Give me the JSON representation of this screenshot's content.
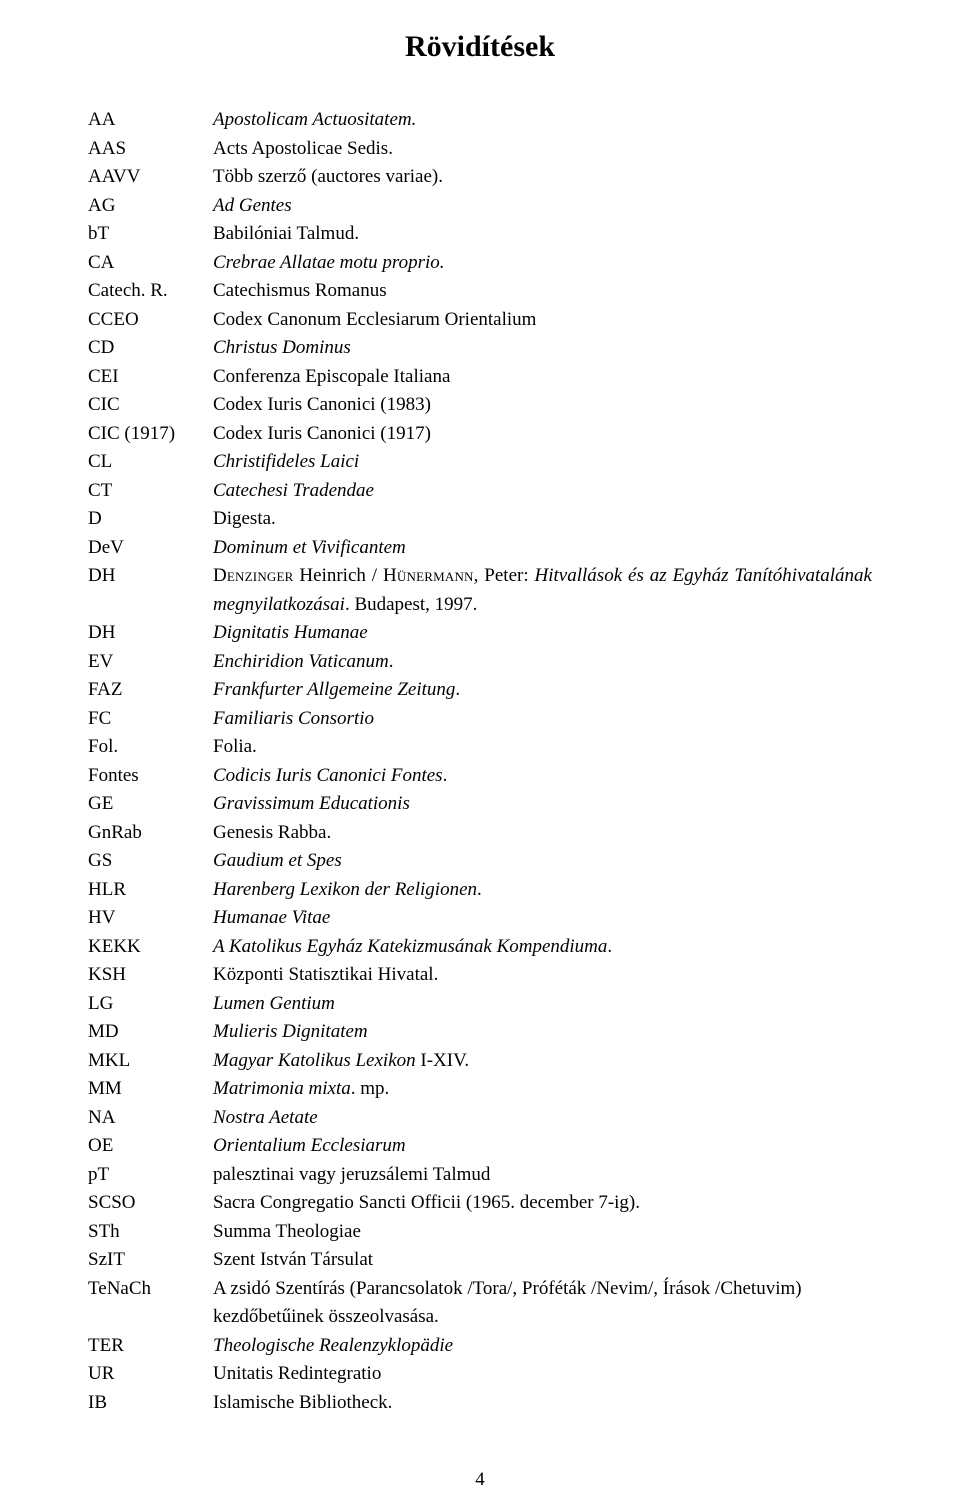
{
  "title": "Rövidítések",
  "page_number": "4",
  "entries": [
    {
      "abbr": "AA",
      "parts": [
        {
          "t": "Apostolicam Actuositatem.",
          "i": true
        }
      ]
    },
    {
      "abbr": "AAS",
      "parts": [
        {
          "t": "Acts Apostolicae Sedis."
        }
      ]
    },
    {
      "abbr": "AAVV",
      "parts": [
        {
          "t": "Több szerző (auctores variae)."
        }
      ]
    },
    {
      "abbr": "AG",
      "parts": [
        {
          "t": "Ad Gentes",
          "i": true
        }
      ]
    },
    {
      "abbr": "bT",
      "parts": [
        {
          "t": "Babilóniai Talmud."
        }
      ]
    },
    {
      "abbr": "CA",
      "parts": [
        {
          "t": "Crebrae Allatae motu proprio.",
          "i": true
        }
      ]
    },
    {
      "abbr": "Catech. R.",
      "parts": [
        {
          "t": "Catechismus Romanus"
        }
      ]
    },
    {
      "abbr": "CCEO",
      "parts": [
        {
          "t": "Codex Canonum Ecclesiarum Orientalium"
        }
      ]
    },
    {
      "abbr": "CD",
      "parts": [
        {
          "t": "Christus Dominus",
          "i": true
        }
      ]
    },
    {
      "abbr": "CEI",
      "parts": [
        {
          "t": "Conferenza Episcopale Italiana"
        }
      ]
    },
    {
      "abbr": "CIC",
      "parts": [
        {
          "t": "Codex Iuris Canonici (1983)"
        }
      ]
    },
    {
      "abbr": "CIC (1917)",
      "parts": [
        {
          "t": "Codex Iuris Canonici (1917)"
        }
      ]
    },
    {
      "abbr": "CL",
      "parts": [
        {
          "t": "Christifideles Laici",
          "i": true
        }
      ]
    },
    {
      "abbr": "CT",
      "parts": [
        {
          "t": "Catechesi Tradendae",
          "i": true
        }
      ]
    },
    {
      "abbr": "D",
      "parts": [
        {
          "t": "Digesta."
        }
      ]
    },
    {
      "abbr": "DeV",
      "parts": [
        {
          "t": "Dominum et Vivificantem",
          "i": true
        }
      ]
    },
    {
      "abbr": "DH",
      "parts": [
        {
          "t": "Denzinger",
          "sc": true
        },
        {
          "t": " Heinrich / "
        },
        {
          "t": "Hünermann",
          "sc": true
        },
        {
          "t": ", Peter: "
        },
        {
          "t": "Hitvallások és az Egyház Tanítóhivatalának megnyilatkozásai",
          "i": true
        },
        {
          "t": ". Budapest, 1997."
        }
      ],
      "justify": true
    },
    {
      "abbr": "DH",
      "parts": [
        {
          "t": "Dignitatis Humanae",
          "i": true
        }
      ]
    },
    {
      "abbr": "EV",
      "parts": [
        {
          "t": "Enchiridion Vaticanum",
          "i": true
        },
        {
          "t": "."
        }
      ]
    },
    {
      "abbr": "FAZ",
      "parts": [
        {
          "t": "Frankfurter Allgemeine Zeitung",
          "i": true
        },
        {
          "t": "."
        }
      ]
    },
    {
      "abbr": "FC",
      "parts": [
        {
          "t": "Familiaris Consortio",
          "i": true
        }
      ]
    },
    {
      "abbr": "Fol.",
      "parts": [
        {
          "t": "Folia."
        }
      ]
    },
    {
      "abbr": "Fontes",
      "parts": [
        {
          "t": "Codicis Iuris Canonici Fontes",
          "i": true
        },
        {
          "t": "."
        }
      ]
    },
    {
      "abbr": "GE",
      "parts": [
        {
          "t": "Gravissimum Educationis",
          "i": true
        }
      ]
    },
    {
      "abbr": "GnRab",
      "parts": [
        {
          "t": "Genesis Rabba."
        }
      ]
    },
    {
      "abbr": "GS",
      "parts": [
        {
          "t": " Gaudium et Spes",
          "i": true
        }
      ]
    },
    {
      "abbr": "HLR",
      "parts": [
        {
          "t": "Harenberg Lexikon der Religionen",
          "i": true
        },
        {
          "t": "."
        }
      ]
    },
    {
      "abbr": "HV",
      "parts": [
        {
          "t": "Humanae Vitae",
          "i": true
        }
      ]
    },
    {
      "abbr": "KEKK",
      "parts": [
        {
          "t": "A Katolikus Egyház Katekizmusának Kompendiuma",
          "i": true
        },
        {
          "t": "."
        }
      ]
    },
    {
      "abbr": "KSH",
      "parts": [
        {
          "t": "Központi Statisztikai Hivatal."
        }
      ]
    },
    {
      "abbr": "LG",
      "parts": [
        {
          "t": "Lumen Gentium",
          "i": true
        }
      ]
    },
    {
      "abbr": "MD",
      "parts": [
        {
          "t": "Mulieris Dignitatem",
          "i": true
        }
      ]
    },
    {
      "abbr": "MKL",
      "parts": [
        {
          "t": "Magyar Katolikus Lexikon ",
          "i": true
        },
        {
          "t": "I-XIV."
        }
      ]
    },
    {
      "abbr": "MM",
      "parts": [
        {
          "t": "Matrimonia mixta",
          "i": true
        },
        {
          "t": ". mp."
        }
      ]
    },
    {
      "abbr": "NA",
      "parts": [
        {
          "t": "Nostra Aetate",
          "i": true
        }
      ]
    },
    {
      "abbr": "OE",
      "parts": [
        {
          "t": "Orientalium Ecclesiarum",
          "i": true
        }
      ]
    },
    {
      "abbr": "pT",
      "parts": [
        {
          "t": "palesztinai vagy jeruzsálemi Talmud"
        }
      ]
    },
    {
      "abbr": "SCSO",
      "parts": [
        {
          "t": "Sacra Congregatio Sancti Officii (1965. december 7-ig)."
        }
      ]
    },
    {
      "abbr": "STh",
      "parts": [
        {
          "t": "Summa Theologiae"
        }
      ]
    },
    {
      "abbr": "SzIT",
      "parts": [
        {
          "t": "Szent István Társulat"
        }
      ]
    },
    {
      "abbr": "TeNaCh",
      "parts": [
        {
          "t": "A zsidó Szentírás (Parancsolatok /Tora/, Próféták /Nevim/, Írások /Chetuvim) kezdőbetűinek összeolvasása."
        }
      ]
    },
    {
      "abbr": "TER",
      "parts": [
        {
          "t": "Theologische Realenzyklopädie",
          "i": true
        }
      ]
    },
    {
      "abbr": "UR",
      "parts": [
        {
          "t": "Unitatis Redintegratio"
        }
      ]
    },
    {
      "abbr": "IB",
      "parts": [
        {
          "t": "Islamische Bibliotheck."
        }
      ]
    }
  ]
}
